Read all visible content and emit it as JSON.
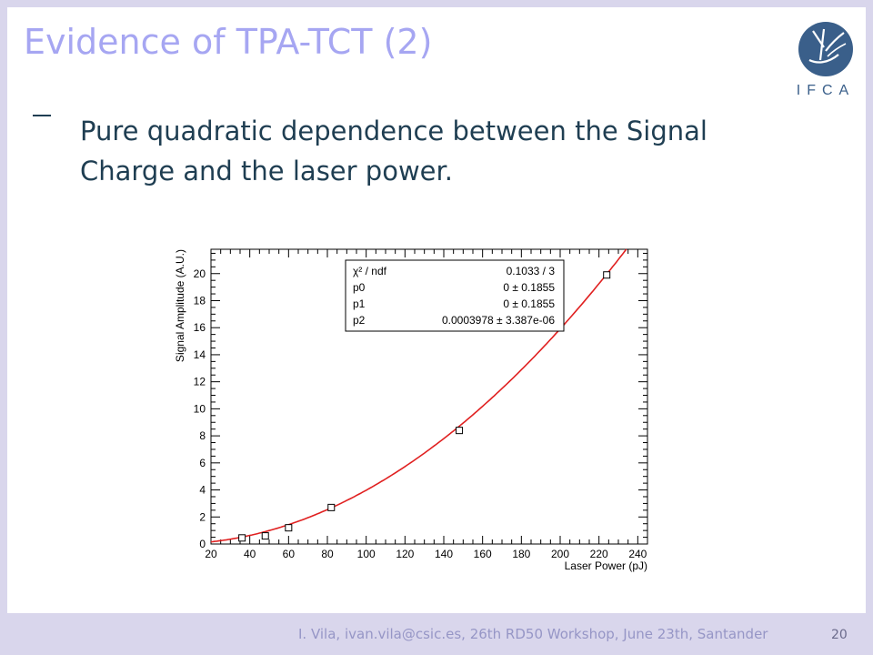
{
  "slide": {
    "title": "Evidence of TPA-TCT (2)",
    "bullet": "Pure quadratic dependence between the Signal Charge and the laser power.",
    "logo_text": "IFCA",
    "footer": "I. Vila, ivan.vila@csic.es, 26th RD50 Workshop, June 23th, Santander",
    "page_number": "20",
    "colors": {
      "title": "#a6a6f2",
      "text": "#1f3e52",
      "footer": "#9696c6",
      "logo": "#3a5f8a",
      "fit_line": "#e02020"
    }
  },
  "chart_data": {
    "type": "scatter",
    "xlabel": "Laser Power (pJ)",
    "ylabel": "Signal Amplitude (A.U.)",
    "xlim": [
      20,
      245
    ],
    "ylim": [
      0,
      21.8
    ],
    "xticks": [
      20,
      40,
      60,
      80,
      100,
      120,
      140,
      160,
      180,
      200,
      220,
      240
    ],
    "yticks": [
      0,
      2,
      4,
      6,
      8,
      10,
      12,
      14,
      16,
      18,
      20
    ],
    "grid": false,
    "points": [
      {
        "x": 36,
        "y": 0.45
      },
      {
        "x": 48,
        "y": 0.6
      },
      {
        "x": 60,
        "y": 1.2
      },
      {
        "x": 82,
        "y": 2.7
      },
      {
        "x": 148,
        "y": 8.4
      },
      {
        "x": 224,
        "y": 19.9
      }
    ],
    "fit": {
      "function": "p0 + p1*x + p2*x^2",
      "p0": 0,
      "p1": 0,
      "p2": 0.0003978,
      "x_start": 15
    },
    "stats_box": {
      "position": "top-right",
      "rows": [
        {
          "label": "χ² / ndf",
          "value": "0.1033 / 3"
        },
        {
          "label": "p0",
          "value": "0 ± 0.1855"
        },
        {
          "label": "p1",
          "value": "0 ± 0.1855"
        },
        {
          "label": "p2",
          "value": "0.0003978 ± 3.387e-06"
        }
      ]
    }
  }
}
